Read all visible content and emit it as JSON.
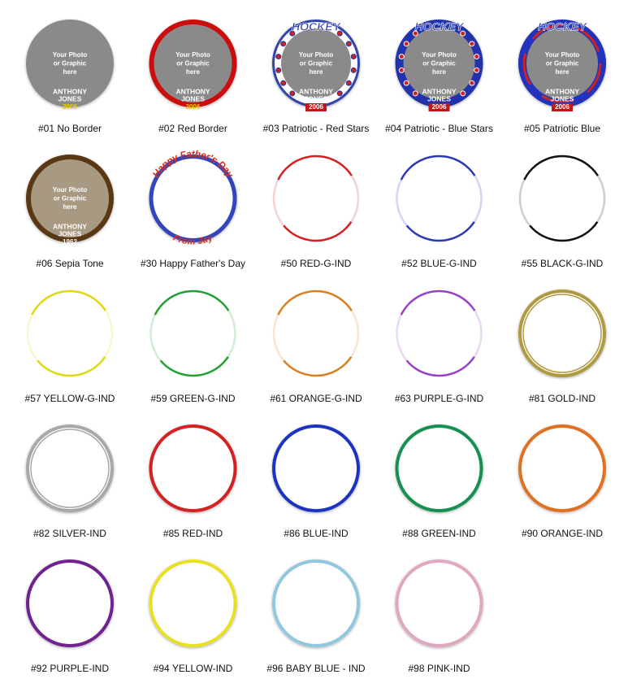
{
  "items": [
    {
      "label": "#01 No Border",
      "photo": [
        "Your Photo",
        "or Graphic",
        "here"
      ],
      "name": [
        "ANTHONY",
        "JONES"
      ],
      "year": "2006"
    },
    {
      "label": "#02 Red Border",
      "photo": [
        "Your Photo",
        "or Graphic",
        "here"
      ],
      "name": [
        "ANTHONY",
        "JONES"
      ],
      "year": "2006"
    },
    {
      "label": "#03 Patriotic - Red Stars",
      "banner": "HOCKEY",
      "photo": [
        "Your Photo",
        "or Graphic",
        "here"
      ],
      "name": [
        "ANTHONY",
        "JONES"
      ],
      "year": "2006"
    },
    {
      "label": "#04 Patriotic - Blue Stars",
      "banner": "HOCKEY",
      "photo": [
        "Your Photo",
        "or Graphic",
        "here"
      ],
      "name": [
        "ANTHONY",
        "JONES"
      ],
      "year": "2006"
    },
    {
      "label": "#05 Patriotic Blue",
      "banner": "HOCKEY",
      "photo": [
        "Your Photo",
        "or Graphic",
        "here"
      ],
      "name": [
        "ANTHONY",
        "JONES"
      ],
      "year": "2006"
    },
    {
      "label": "#06 Sepia Tone",
      "photo": [
        "Your Photo",
        "or Graphic",
        "here"
      ],
      "name": [
        "ANTHONY",
        "JONES"
      ],
      "year": "1962"
    },
    {
      "label": "#30 Happy Father's Day",
      "top_text": "Happy Father's Day",
      "bottom_text": "From Jay"
    },
    {
      "label": "#50 RED-G-IND"
    },
    {
      "label": "#52 BLUE-G-IND"
    },
    {
      "label": "#55 BLACK-G-IND"
    },
    {
      "label": "#57 YELLOW-G-IND"
    },
    {
      "label": "#59 GREEN-G-IND"
    },
    {
      "label": "#61 ORANGE-G-IND"
    },
    {
      "label": "#63 PURPLE-G-IND"
    },
    {
      "label": "#81 GOLD-IND"
    },
    {
      "label": "#82 SILVER-IND"
    },
    {
      "label": "#85 RED-IND"
    },
    {
      "label": "#86 BLUE-IND"
    },
    {
      "label": "#88 GREEN-IND"
    },
    {
      "label": "#90 ORANGE-IND"
    },
    {
      "label": "#92 PURPLE-IND"
    },
    {
      "label": "#94 YELLOW-IND"
    },
    {
      "label": "#96 BABY BLUE - IND"
    },
    {
      "label": "#98 PINK-IND"
    }
  ]
}
